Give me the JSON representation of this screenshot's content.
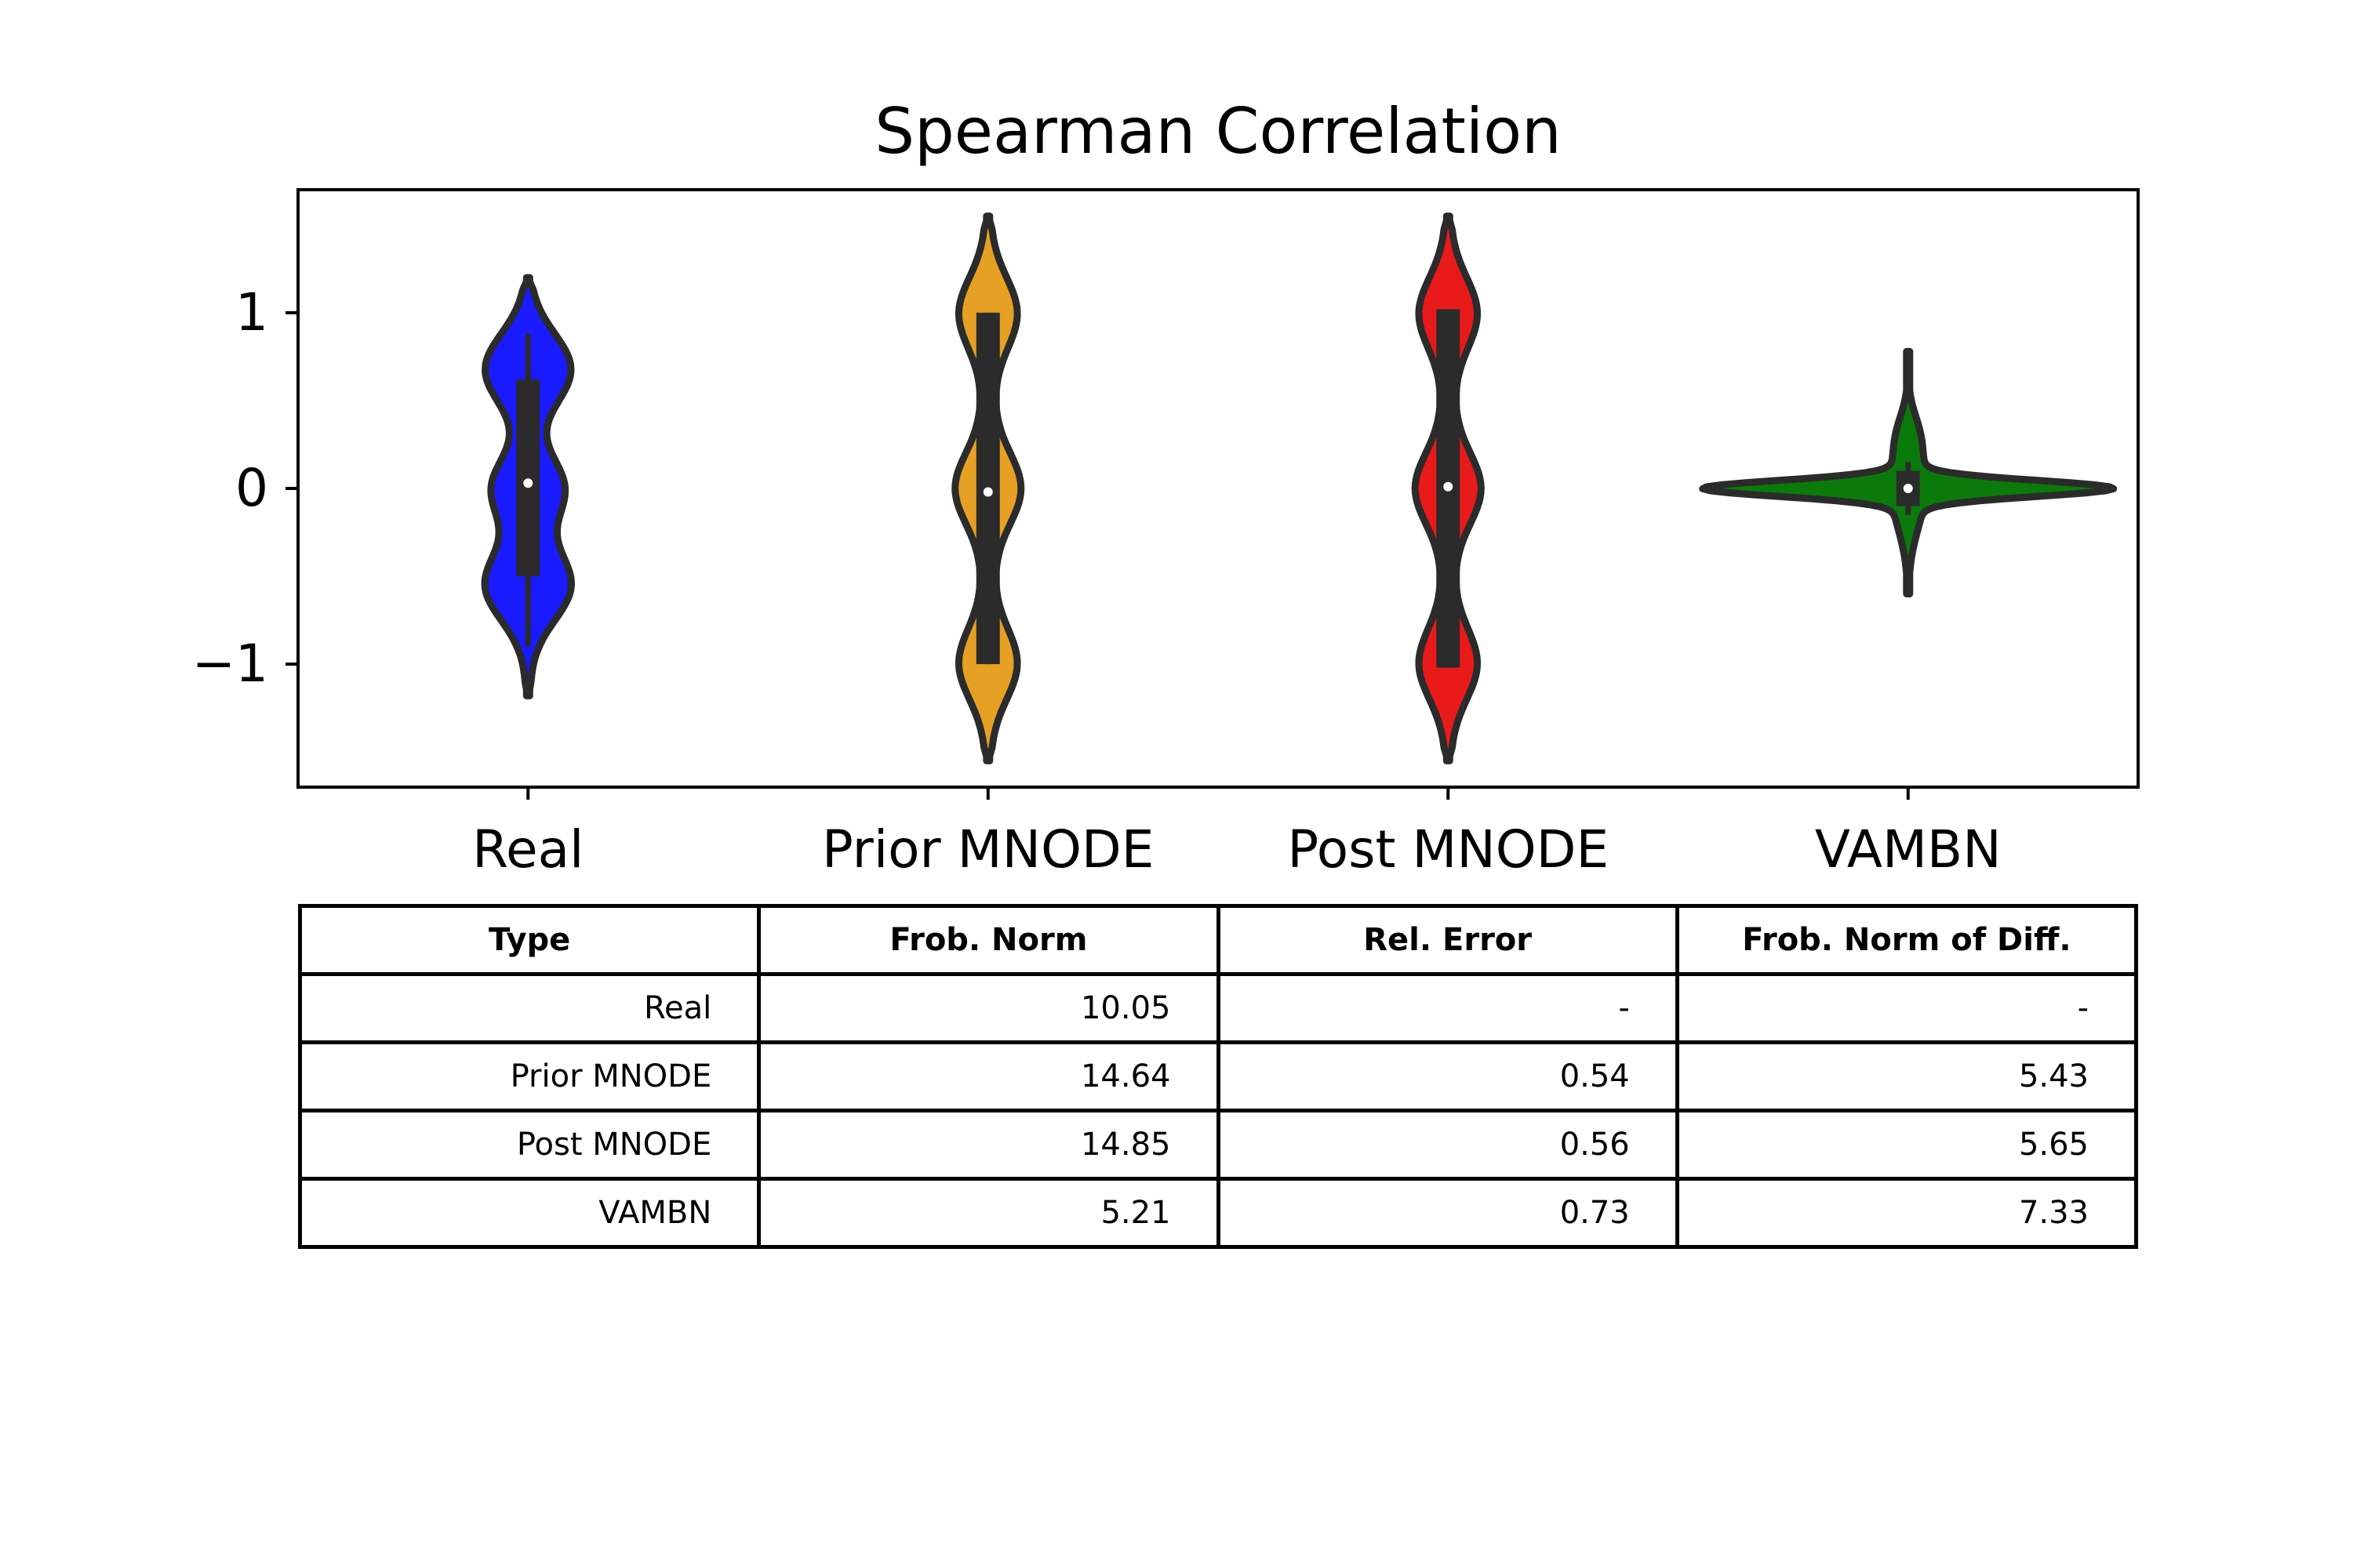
{
  "chart_data": {
    "type": "violin",
    "title": "Spearman Correlation",
    "xlabel": "",
    "ylabel": "",
    "ylim": [
      -1.7,
      1.7
    ],
    "yticks": [
      1,
      0,
      -1
    ],
    "ytick_labels": [
      "1",
      "0",
      "−1"
    ],
    "categories": [
      "Real",
      "Prior MNODE",
      "Post MNODE",
      "VAMBN"
    ],
    "colors": [
      "#1a1aff",
      "#e6a024",
      "#e81a1a",
      "#0a7a0a"
    ],
    "series": [
      {
        "category": "Real",
        "min": -1.18,
        "max": 1.2,
        "q1": -0.5,
        "median": 0.03,
        "q3": 0.62,
        "whisker_low": -0.9,
        "whisker_high": 0.88
      },
      {
        "category": "Prior MNODE",
        "min": -1.55,
        "max": 1.55,
        "q1": -1.0,
        "median": -0.02,
        "q3": 1.0,
        "whisker_low": -1.0,
        "whisker_high": 1.0
      },
      {
        "category": "Post MNODE",
        "min": -1.55,
        "max": 1.55,
        "q1": -1.02,
        "median": 0.01,
        "q3": 1.02,
        "whisker_low": -1.02,
        "whisker_high": 1.02
      },
      {
        "category": "VAMBN",
        "min": -0.6,
        "max": 0.78,
        "q1": -0.1,
        "median": 0.0,
        "q3": 0.1,
        "whisker_low": -0.15,
        "whisker_high": 0.15
      }
    ],
    "grid": false,
    "table": {
      "headers": [
        "Type",
        "Frob. Norm",
        "Rel. Error",
        "Frob. Norm of Diff."
      ],
      "rows": [
        [
          "Real",
          "10.05",
          "-",
          "-"
        ],
        [
          "Prior MNODE",
          "14.64",
          "0.54",
          "5.43"
        ],
        [
          "Post MNODE",
          "14.85",
          "0.56",
          "5.65"
        ],
        [
          "VAMBN",
          "5.21",
          "0.73",
          "7.33"
        ]
      ]
    }
  }
}
